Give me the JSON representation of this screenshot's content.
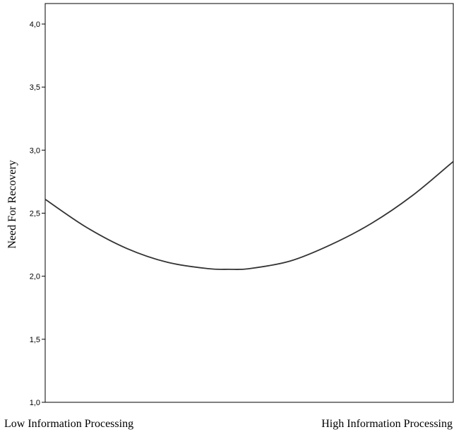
{
  "chart_data": {
    "type": "line",
    "title": "",
    "ylabel": "Need For Recovery",
    "xlabel": "",
    "x_category_labels": [
      "Low Information Processing",
      "High Information Processing"
    ],
    "x_range": [
      0,
      1
    ],
    "ylim": [
      1.0,
      4.0
    ],
    "y_ticks": [
      1.0,
      1.5,
      2.0,
      2.5,
      3.0,
      3.5,
      4.0
    ],
    "y_tick_labels": [
      "1,0",
      "1,5",
      "2,0",
      "2,5",
      "3,0",
      "3,5",
      "4,0"
    ],
    "grid": false,
    "legend": "none",
    "series": [
      {
        "x": [
          0.0,
          0.1,
          0.2,
          0.3,
          0.4,
          0.45,
          0.5,
          0.6,
          0.7,
          0.8,
          0.9,
          1.0
        ],
        "y": [
          2.61,
          2.39,
          2.22,
          2.11,
          2.06,
          2.055,
          2.06,
          2.12,
          2.25,
          2.42,
          2.64,
          2.91
        ],
        "color": "#333333"
      }
    ]
  }
}
